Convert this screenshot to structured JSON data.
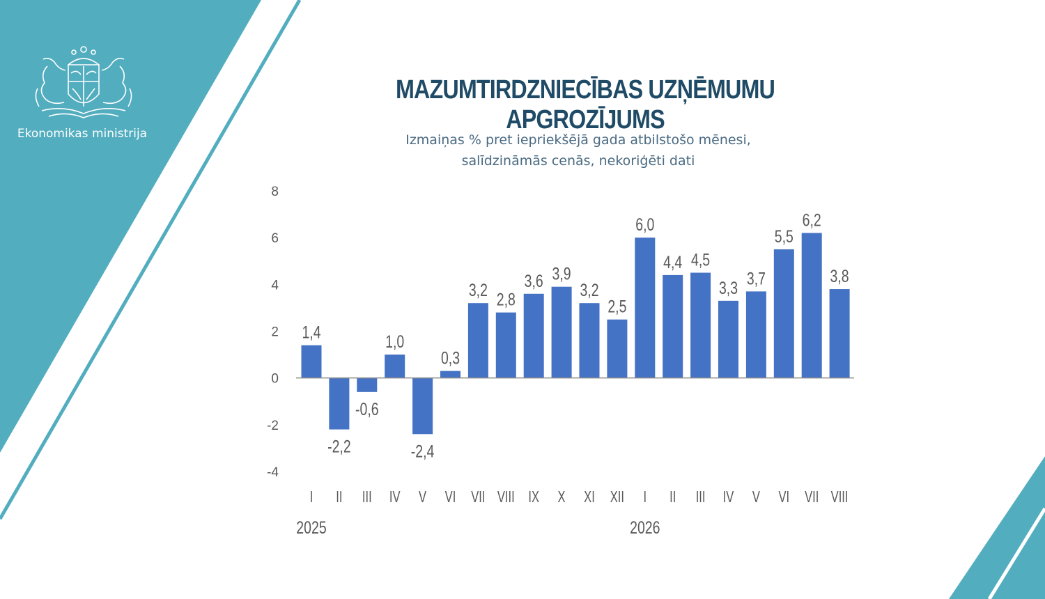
{
  "organization": {
    "name": "Ekonomikas ministrija",
    "emblem_icon": "latvia-coat-of-arms-icon"
  },
  "colors": {
    "accent": "#52adbf",
    "bar": "#4472c4",
    "title": "#1f4b66",
    "subtitle": "#4a6a82",
    "axis_text": "#595959"
  },
  "header": {
    "title": "MAZUMTIRDZNIECĪBAS UZŅĒMUMU APGROZĪJUMS",
    "subtitle_line1": "Izmaiņas % pret iepriekšējā gada atbilstošo mēnesi,",
    "subtitle_line2": "salīdzināmās cenās, nekoriģēti dati"
  },
  "chart_data": {
    "type": "bar",
    "title": "MAZUMTIRDZNIECĪBAS UZŅĒMUMU APGROZĪJUMS",
    "subtitle": "Izmaiņas % pret iepriekšējā gada atbilstošo mēnesi, salīdzināmās cenās, nekoriģēti dati",
    "xlabel": "",
    "ylabel": "",
    "ylim": [
      -4,
      8
    ],
    "yticks": [
      "8",
      "6",
      "4",
      "2",
      "0",
      "-2",
      "-4"
    ],
    "categories": [
      "I",
      "II",
      "III",
      "IV",
      "V",
      "VI",
      "VII",
      "VIII",
      "IX",
      "X",
      "XI",
      "XII",
      "I",
      "II",
      "III",
      "IV",
      "V",
      "VI",
      "VII",
      "VIII"
    ],
    "year_labels": [
      {
        "label": "2025",
        "start_index": 0
      },
      {
        "label": "2026",
        "start_index": 12
      }
    ],
    "values": [
      1.4,
      -2.2,
      -0.6,
      1.0,
      -2.4,
      0.3,
      3.2,
      2.8,
      3.6,
      3.9,
      3.2,
      2.5,
      6.0,
      4.4,
      4.5,
      3.3,
      3.7,
      5.5,
      6.2,
      3.8
    ],
    "data_labels": [
      "1,4",
      "-2,2",
      "-0,6",
      "1,0",
      "-2,4",
      "0,3",
      "3,2",
      "2,8",
      "3,6",
      "3,9",
      "3,2",
      "2,5",
      "6,0",
      "4,4",
      "4,5",
      "3,3",
      "3,7",
      "5,5",
      "6,2",
      "3,8"
    ],
    "grid": false,
    "legend": "none"
  }
}
